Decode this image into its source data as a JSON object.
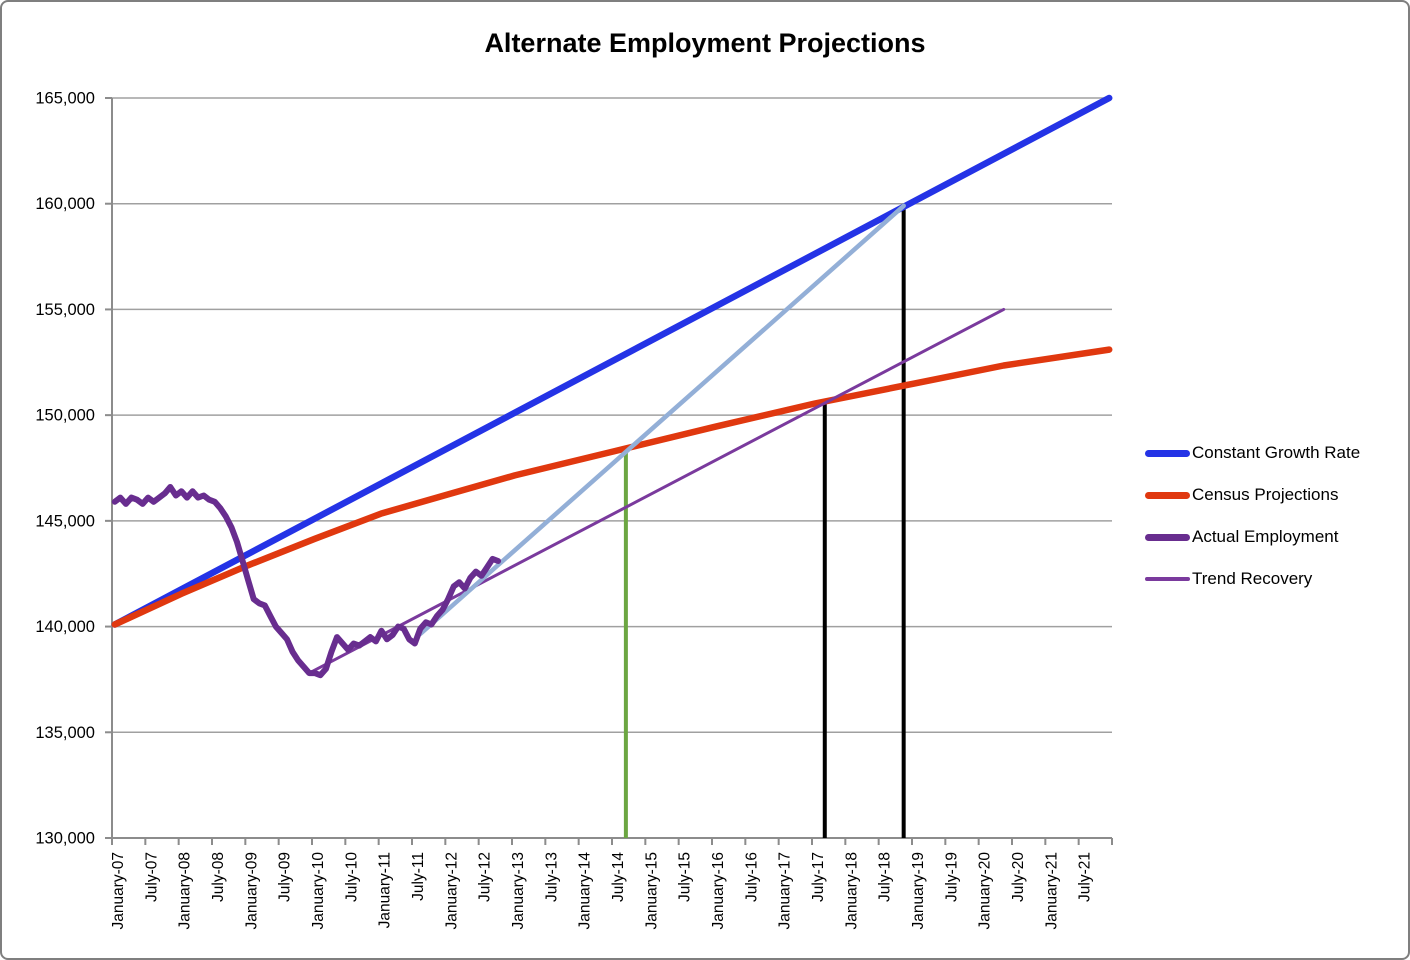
{
  "title": "Alternate Employment Projections",
  "chart_data": {
    "type": "line",
    "title": "Alternate Employment Projections",
    "grid": "horizontal",
    "grid_color": "#a0a0a0",
    "axis_color": "#8c8c8c",
    "legend_position": "right",
    "y_axis": {
      "min": 130000,
      "max": 165000,
      "step": 5000,
      "tick_labels": [
        "130,000",
        "135,000",
        "140,000",
        "145,000",
        "150,000",
        "155,000",
        "160,000",
        "165,000"
      ]
    },
    "x_axis": {
      "months_per_tick": 6,
      "total_months": 180,
      "tick_labels": [
        "January-07",
        "July-07",
        "January-08",
        "July-08",
        "January-09",
        "July-09",
        "January-10",
        "July-10",
        "January-11",
        "July-11",
        "January-12",
        "July-12",
        "January-13",
        "July-13",
        "January-14",
        "July-14",
        "January-15",
        "July-15",
        "January-16",
        "July-16",
        "January-17",
        "July-17",
        "January-18",
        "July-18",
        "January-19",
        "July-19",
        "January-20",
        "July-20",
        "January-21",
        "July-21"
      ]
    },
    "series": [
      {
        "id": "constant-growth-rate",
        "name": "Constant Growth Rate",
        "color": "#2433e6",
        "width": 6.5,
        "legend": true,
        "points": [
          [
            0,
            140100
          ],
          [
            179,
            165000
          ]
        ]
      },
      {
        "id": "census-projections",
        "name": "Census Projections",
        "color": "#e0380f",
        "width": 6.5,
        "legend": true,
        "points": [
          [
            0,
            140100
          ],
          [
            12,
            141550
          ],
          [
            24,
            142900
          ],
          [
            36,
            144150
          ],
          [
            48,
            145350
          ],
          [
            60,
            146250
          ],
          [
            72,
            147150
          ],
          [
            90,
            148300
          ],
          [
            108,
            149450
          ],
          [
            126,
            150550
          ],
          [
            144,
            151500
          ],
          [
            160,
            152350
          ],
          [
            179,
            153100
          ]
        ]
      },
      {
        "id": "trend-recovery",
        "name": "Trend Recovery",
        "color": "#7a3a9d",
        "width": 3,
        "legend": true,
        "points": [
          [
            35,
            137800
          ],
          [
            160,
            155000
          ]
        ]
      },
      {
        "id": "recovery-path",
        "name": "",
        "color": "#93afd7",
        "width": 4.5,
        "legend": false,
        "points": [
          [
            55,
            139650
          ],
          [
            142,
            159900
          ]
        ]
      },
      {
        "id": "actual-employment",
        "name": "Actual Employment",
        "color": "#682d8f",
        "width": 6,
        "legend": true,
        "start_month": 0,
        "monthly_values": [
          145900,
          146100,
          145800,
          146100,
          146000,
          145800,
          146100,
          145900,
          146100,
          146300,
          146600,
          146200,
          146400,
          146100,
          146400,
          146100,
          146200,
          146000,
          145900,
          145600,
          145200,
          144700,
          144000,
          143100,
          142200,
          141300,
          141100,
          141000,
          140500,
          140000,
          139700,
          139400,
          138800,
          138400,
          138100,
          137800,
          137800,
          137700,
          138000,
          138800,
          139500,
          139200,
          138900,
          139200,
          139100,
          139300,
          139500,
          139300,
          139800,
          139400,
          139600,
          140000,
          139900,
          139400,
          139200,
          139900,
          140200,
          140100,
          140500,
          140800,
          141300,
          141900,
          142100,
          141800,
          142300,
          142600,
          142400,
          142800,
          143200,
          143100
        ]
      }
    ],
    "legend_order": [
      "constant-growth-rate",
      "census-projections",
      "actual-employment",
      "trend-recovery"
    ],
    "vertical_lines": [
      {
        "id": "marker-census-cross",
        "month": 92,
        "from": 130000,
        "to": 148350,
        "color": "#6ca642",
        "width": 4
      },
      {
        "id": "marker-trend-cross",
        "month": 127.8,
        "from": 130000,
        "to": 150600,
        "color": "#000000",
        "width": 4
      },
      {
        "id": "marker-growth-cross",
        "month": 142,
        "from": 130000,
        "to": 159900,
        "color": "#000000",
        "width": 4
      }
    ]
  }
}
